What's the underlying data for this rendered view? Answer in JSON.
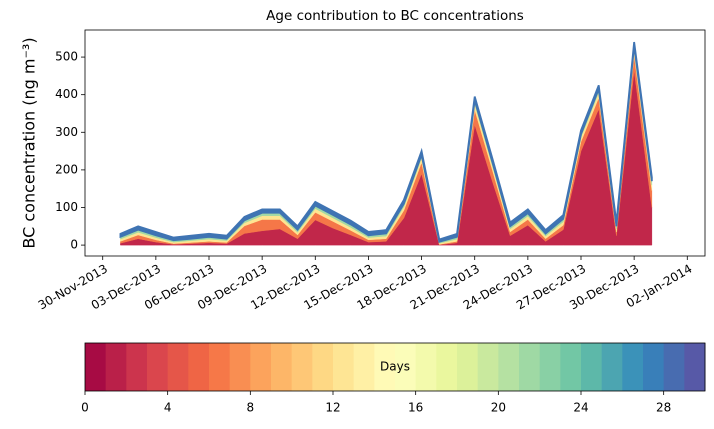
{
  "chart_data": {
    "type": "stackedarea",
    "title": "Age contribution to BC concentrations",
    "y_label": "BC concentration (ng m⁻³)",
    "x": [
      "2013-12-01",
      "2013-12-02",
      "2013-12-03",
      "2013-12-04",
      "2013-12-05",
      "2013-12-06",
      "2013-12-07",
      "2013-12-08",
      "2013-12-09",
      "2013-12-10",
      "2013-12-11",
      "2013-12-12",
      "2013-12-13",
      "2013-12-14",
      "2013-12-15",
      "2013-12-16",
      "2013-12-17",
      "2013-12-18",
      "2013-12-19",
      "2013-12-20",
      "2013-12-21",
      "2013-12-22",
      "2013-12-23",
      "2013-12-24",
      "2013-12-25",
      "2013-12-26",
      "2013-12-27",
      "2013-12-28",
      "2013-12-29",
      "2013-12-30",
      "2013-12-31"
    ],
    "series": [
      {
        "color": "#c1274a",
        "values": [
          5,
          17,
          8,
          2,
          4,
          6,
          4,
          31,
          38,
          43,
          17,
          67,
          45,
          27,
          8,
          10,
          72,
          190,
          1,
          6,
          320,
          169,
          25,
          53,
          10,
          41,
          250,
          362,
          25,
          465,
          100
        ]
      },
      {
        "color": "#f57748",
        "values": [
          5,
          10,
          6,
          2,
          3,
          4,
          3,
          20,
          30,
          25,
          10,
          20,
          18,
          12,
          6,
          7,
          20,
          30,
          1,
          4,
          40,
          30,
          10,
          15,
          7,
          12,
          25,
          30,
          10,
          40,
          45
        ]
      },
      {
        "color": "#fee491",
        "values": [
          6,
          7,
          6,
          4,
          5,
          6,
          5,
          8,
          10,
          10,
          7,
          10,
          9,
          8,
          6,
          7,
          10,
          12,
          3,
          6,
          15,
          12,
          8,
          9,
          7,
          9,
          12,
          14,
          8,
          15,
          15
        ]
      },
      {
        "color": "#a3d9a4",
        "values": [
          6,
          7,
          6,
          5,
          5,
          6,
          5,
          7,
          8,
          8,
          7,
          8,
          8,
          8,
          6,
          7,
          8,
          8,
          4,
          6,
          10,
          9,
          7,
          8,
          7,
          8,
          8,
          9,
          7,
          10,
          10
        ]
      },
      {
        "color": "#3f74b3",
        "values": [
          8,
          9,
          9,
          7,
          8,
          8,
          8,
          9,
          9,
          9,
          9,
          10,
          10,
          10,
          9,
          9,
          10,
          10,
          6,
          8,
          10,
          10,
          10,
          10,
          9,
          10,
          10,
          10,
          10,
          10,
          10
        ]
      }
    ],
    "xlim": [
      "2013-11-29",
      "2014-01-03"
    ],
    "xticks": [
      {
        "value": "2013-11-30",
        "label": "30-Nov-2013"
      },
      {
        "value": "2013-12-03",
        "label": "03-Dec-2013"
      },
      {
        "value": "2013-12-06",
        "label": "06-Dec-2013"
      },
      {
        "value": "2013-12-09",
        "label": "09-Dec-2013"
      },
      {
        "value": "2013-12-12",
        "label": "12-Dec-2013"
      },
      {
        "value": "2013-12-15",
        "label": "15-Dec-2013"
      },
      {
        "value": "2013-12-18",
        "label": "18-Dec-2013"
      },
      {
        "value": "2013-12-21",
        "label": "21-Dec-2013"
      },
      {
        "value": "2013-12-24",
        "label": "24-Dec-2013"
      },
      {
        "value": "2013-12-27",
        "label": "27-Dec-2013"
      },
      {
        "value": "2013-12-30",
        "label": "30-Dec-2013"
      },
      {
        "value": "2014-01-02",
        "label": "02-Jan-2014"
      }
    ],
    "ylim": [
      -29,
      572
    ],
    "yticks": [
      0,
      100,
      200,
      300,
      400,
      500
    ],
    "colorbar": {
      "label": "Days",
      "lim": [
        0,
        30
      ],
      "levels": 30,
      "ticks": [
        0,
        4,
        8,
        12,
        16,
        20,
        24,
        28
      ],
      "colormap": [
        "#9e0142",
        "#d53e4f",
        "#f46d43",
        "#fdae61",
        "#fee08b",
        "#ffffbf",
        "#e6f598",
        "#abdda4",
        "#66c2a5",
        "#3288bd",
        "#5e4fa2"
      ]
    }
  }
}
